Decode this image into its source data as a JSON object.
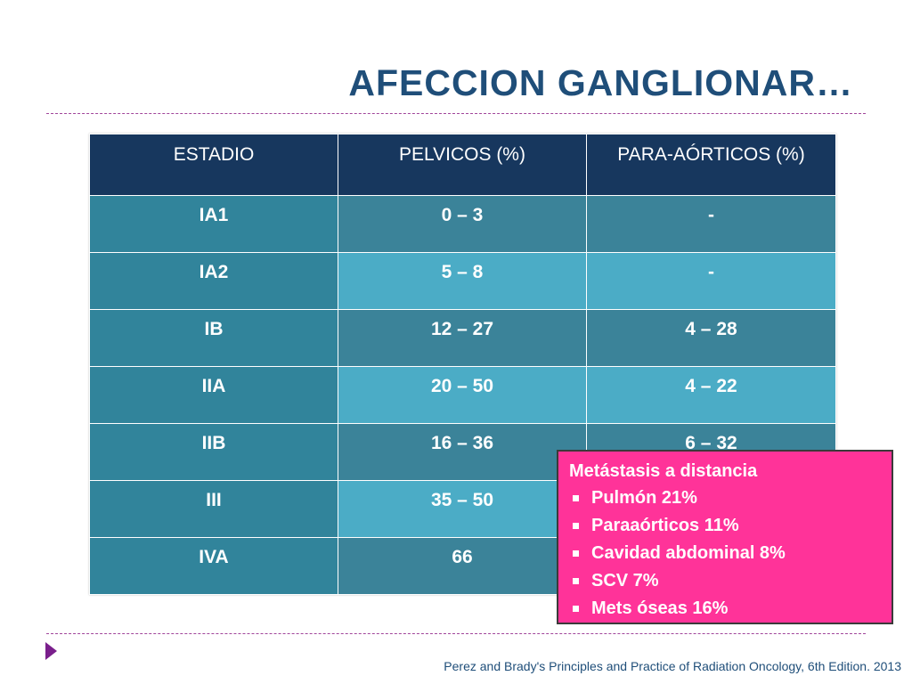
{
  "title": "AFECCION GANGLIONAR…",
  "table": {
    "headers": [
      "ESTADIO",
      "PELVICOS (%)",
      "PARA-AÓRTICOS (%)"
    ],
    "rows": [
      [
        "IA1",
        "0 – 3",
        "-"
      ],
      [
        "IA2",
        "5 – 8",
        "-"
      ],
      [
        "IB",
        "12 – 27",
        "4 – 28"
      ],
      [
        "IIA",
        "20 – 50",
        "4 – 22"
      ],
      [
        "IIB",
        "16 – 36",
        "6 – 32"
      ],
      [
        "III",
        "35 – 50",
        ""
      ],
      [
        "IVA",
        "66",
        ""
      ]
    ]
  },
  "mets_box": {
    "title": "Metástasis a distancia",
    "items": [
      "Pulmón 21%",
      "Paraaórticos 11%",
      "Cavidad abdominal  8%",
      "SCV 7%",
      "Mets óseas  16%"
    ]
  },
  "footer": "Perez and Brady's Principles and Practice of Radiation Oncology, 6th Edition. 2013",
  "colors": {
    "title": "#1f4e79",
    "header_bg": "#17375e",
    "stage_col_bg": "#31849b",
    "row_dark_bg": "#3b8399",
    "row_light_bg": "#4bacc6",
    "mets_box_bg": "#ff3399",
    "divider": "#a0449a",
    "arrow": "#7a1f8c"
  },
  "icons": {
    "bullet": "square-bullet-icon",
    "nav": "play-arrow-icon"
  }
}
